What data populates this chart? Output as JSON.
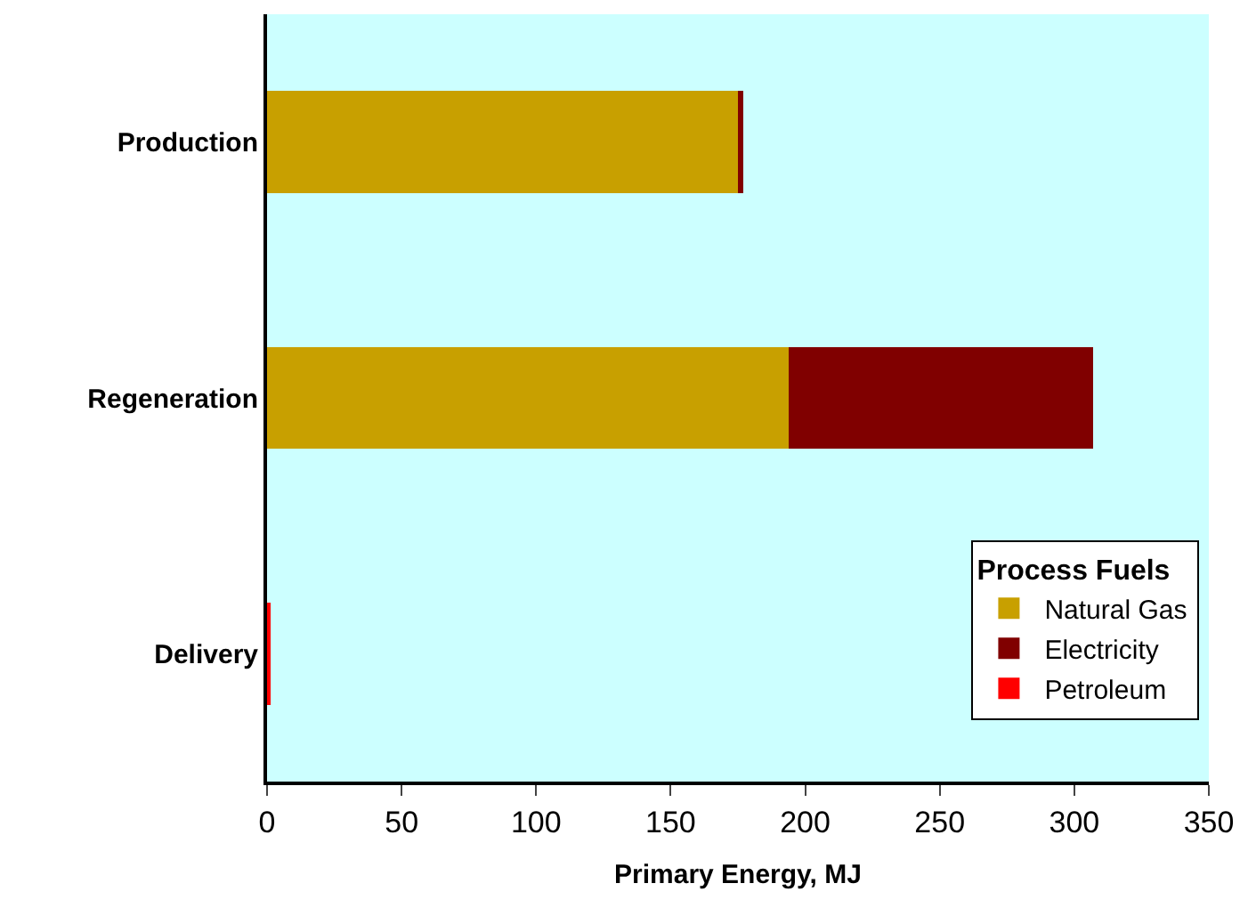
{
  "chart_data": {
    "type": "bar",
    "orientation": "horizontal",
    "stacked": true,
    "categories": [
      "Production",
      "Regeneration",
      "Delivery"
    ],
    "series": [
      {
        "name": "Natural Gas",
        "color": "#c8a000",
        "values": [
          175,
          194,
          0
        ]
      },
      {
        "name": "Electricity",
        "color": "#800000",
        "values": [
          2,
          113,
          0
        ]
      },
      {
        "name": "Petroleum",
        "color": "#ff0000",
        "values": [
          0,
          0,
          1
        ]
      }
    ],
    "xlabel": "Primary Energy, MJ",
    "legend_title": "Process Fuels",
    "legend": "bottom right",
    "xlim": [
      0,
      350
    ],
    "xticks": [
      0,
      50,
      100,
      150,
      200,
      250,
      300,
      350
    ],
    "grid": false
  }
}
